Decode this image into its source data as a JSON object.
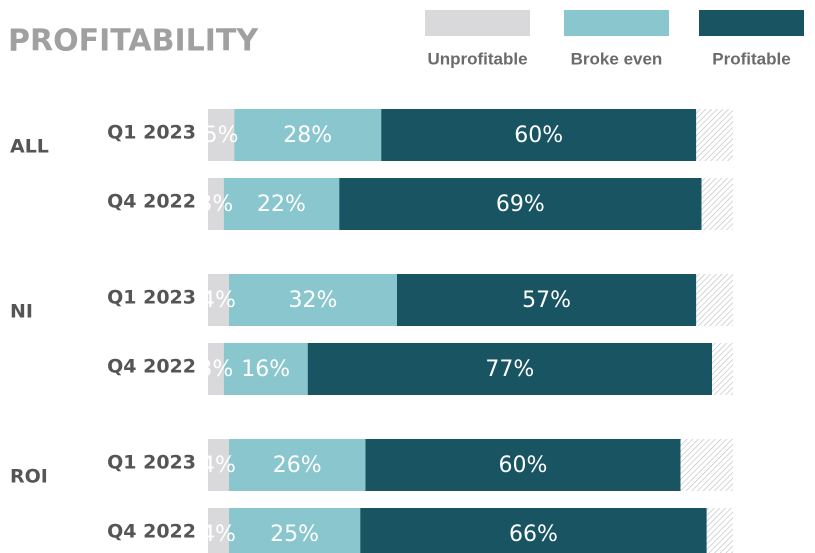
{
  "chart_data": {
    "type": "stacked-barh",
    "title": "PROFITABILITY",
    "category_groups": [
      "ALL",
      "NI",
      "ROI"
    ],
    "categories": [
      "Q1 2023",
      "Q4 2022",
      "Q1 2023",
      "Q4 2022",
      "Q1 2023",
      "Q4 2022"
    ],
    "series": [
      {
        "name": "Unprofitable",
        "color": "#d9d9dc",
        "values": [
          5,
          3,
          4,
          3,
          4,
          4
        ],
        "value_labels": [
          "5%",
          "3%",
          "4%",
          "3%",
          "4%",
          "4%"
        ]
      },
      {
        "name": "Broke even",
        "color": "#89c6ce",
        "values": [
          28,
          22,
          32,
          16,
          26,
          25
        ],
        "value_labels": [
          "28%",
          "22%",
          "32%",
          "16%",
          "26%",
          "25%"
        ]
      },
      {
        "name": "Profitable",
        "color": "#185462",
        "values": [
          60,
          69,
          57,
          77,
          60,
          66
        ],
        "value_labels": [
          "60%",
          "69%",
          "57%",
          "77%",
          "60%",
          "66%"
        ]
      }
    ],
    "xlim": [
      0,
      100
    ],
    "legend": "top-right"
  }
}
